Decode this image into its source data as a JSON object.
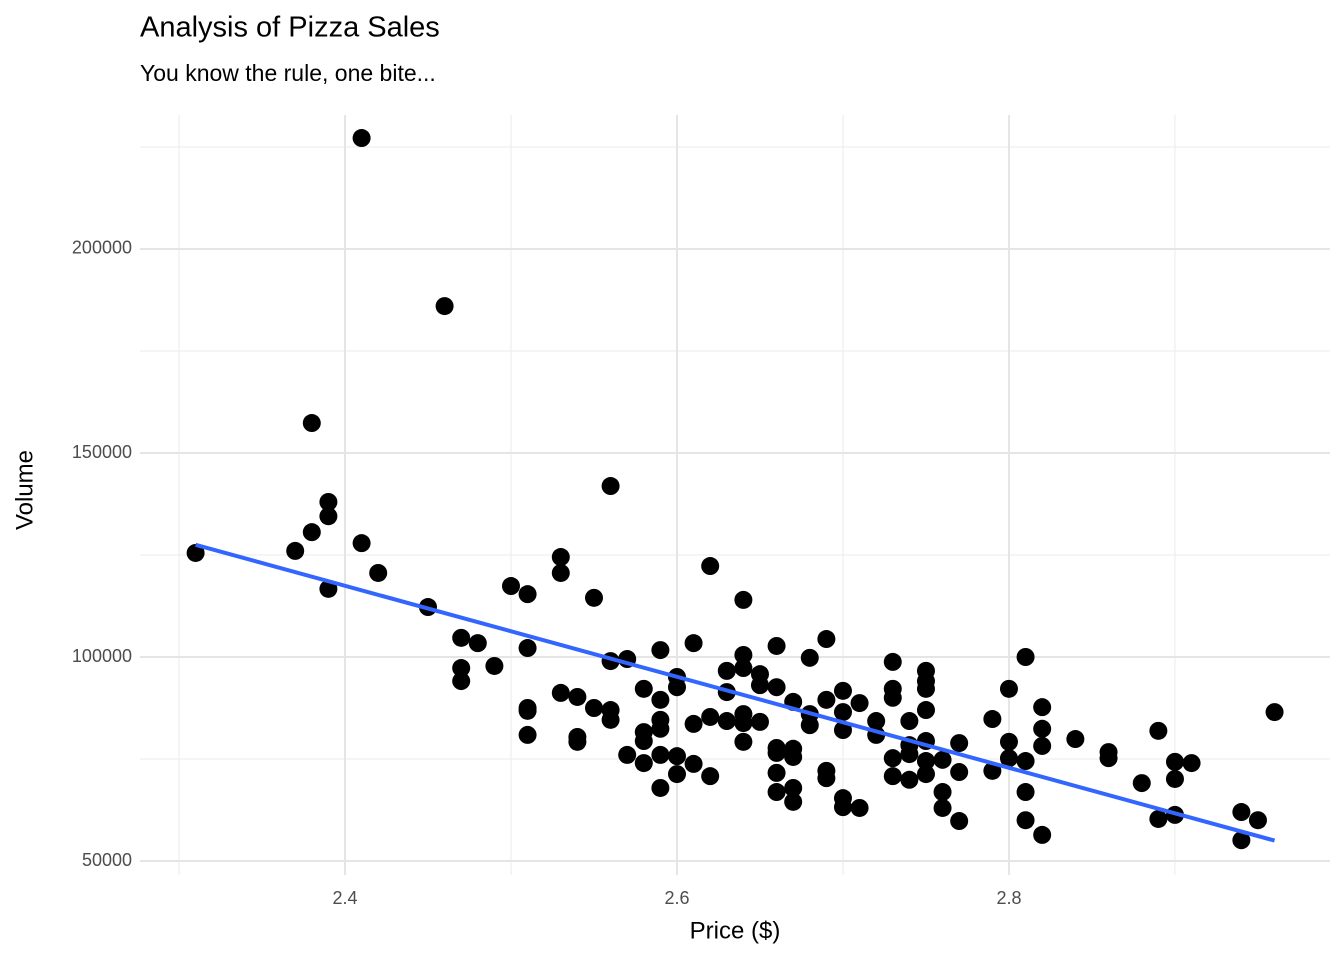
{
  "chart_data": {
    "type": "scatter",
    "title": "Analysis of Pizza Sales",
    "subtitle": "You know the rule, one bite...",
    "x_label": "Price ($)",
    "y_label": "Volume",
    "grid": true,
    "color": "#000000",
    "xlim": [
      2.2765,
      2.9934
    ],
    "ylim": [
      46569,
      232843
    ],
    "xticks": [
      2.4,
      2.6,
      2.8
    ],
    "yticks": [
      50000,
      100000,
      150000,
      200000
    ],
    "x": [
      2.31,
      2.41,
      2.46,
      2.38,
      2.37,
      2.38,
      2.39,
      2.39,
      2.39,
      2.41,
      2.42,
      2.45,
      2.47,
      2.48,
      2.47,
      2.47,
      2.49,
      2.5,
      2.51,
      2.51,
      2.51,
      2.51,
      2.51,
      2.53,
      2.53,
      2.53,
      2.54,
      2.54,
      2.54,
      2.55,
      2.55,
      2.56,
      2.56,
      2.56,
      2.56,
      2.57,
      2.57,
      2.58,
      2.58,
      2.58,
      2.58,
      2.59,
      2.59,
      2.59,
      2.59,
      2.59,
      2.59,
      2.6,
      2.6,
      2.6,
      2.6,
      2.61,
      2.61,
      2.61,
      2.62,
      2.62,
      2.62,
      2.63,
      2.63,
      2.63,
      2.64,
      2.64,
      2.64,
      2.64,
      2.64,
      2.64,
      2.65,
      2.65,
      2.65,
      2.66,
      2.66,
      2.66,
      2.66,
      2.66,
      2.66,
      2.67,
      2.67,
      2.67,
      2.67,
      2.67,
      2.68,
      2.68,
      2.68,
      2.69,
      2.69,
      2.69,
      2.69,
      2.7,
      2.7,
      2.7,
      2.7,
      2.7,
      2.71,
      2.71,
      2.72,
      2.72,
      2.73,
      2.73,
      2.73,
      2.73,
      2.73,
      2.74,
      2.74,
      2.74,
      2.74,
      2.75,
      2.75,
      2.75,
      2.75,
      2.75,
      2.75,
      2.75,
      2.76,
      2.76,
      2.76,
      2.77,
      2.77,
      2.77,
      2.79,
      2.79,
      2.8,
      2.8,
      2.8,
      2.81,
      2.81,
      2.81,
      2.81,
      2.82,
      2.82,
      2.82,
      2.82,
      2.84,
      2.86,
      2.86,
      2.88,
      2.89,
      2.89,
      2.9,
      2.9,
      2.9,
      2.91,
      2.94,
      2.94,
      2.95,
      2.96
    ],
    "values": [
      125500,
      227200,
      186000,
      157350,
      126000,
      130600,
      138000,
      134500,
      116700,
      127900,
      120600,
      112250,
      104700,
      103400,
      97300,
      94100,
      97800,
      117400,
      115400,
      102200,
      87500,
      86800,
      80900,
      124500,
      120600,
      91200,
      90200,
      80400,
      79200,
      114500,
      87500,
      141900,
      99000,
      87000,
      84600,
      99500,
      76000,
      92200,
      81600,
      79400,
      74000,
      101700,
      89500,
      84600,
      82400,
      76000,
      67900,
      95100,
      92600,
      75700,
      71300,
      103400,
      83600,
      73800,
      122300,
      85300,
      70800,
      96600,
      91400,
      84300,
      114000,
      100500,
      97300,
      86000,
      83800,
      79200,
      95800,
      93100,
      84100,
      102700,
      92600,
      77700,
      76500,
      71600,
      66900,
      89000,
      77500,
      75500,
      67900,
      64500,
      99800,
      86000,
      83300,
      104400,
      89500,
      72100,
      70300,
      91700,
      86500,
      82100,
      65400,
      63200,
      88700,
      63000,
      84300,
      80900,
      98800,
      92200,
      90000,
      75200,
      70800,
      84300,
      78400,
      76200,
      69900,
      96600,
      94100,
      92200,
      87000,
      79400,
      74500,
      71300,
      74800,
      66900,
      63000,
      78900,
      71800,
      59800,
      84800,
      72100,
      92200,
      79200,
      75200,
      100000,
      74500,
      66900,
      60000,
      87700,
      82400,
      78200,
      56400,
      79900,
      76700,
      75200,
      69100,
      81900,
      60300,
      74300,
      70100,
      61300,
      74000,
      62000,
      55100,
      60000,
      86500
    ],
    "trend_line": {
      "x": [
        2.31,
        2.96
      ],
      "values": [
        127500,
        55000
      ],
      "color": "#3366FF"
    }
  }
}
